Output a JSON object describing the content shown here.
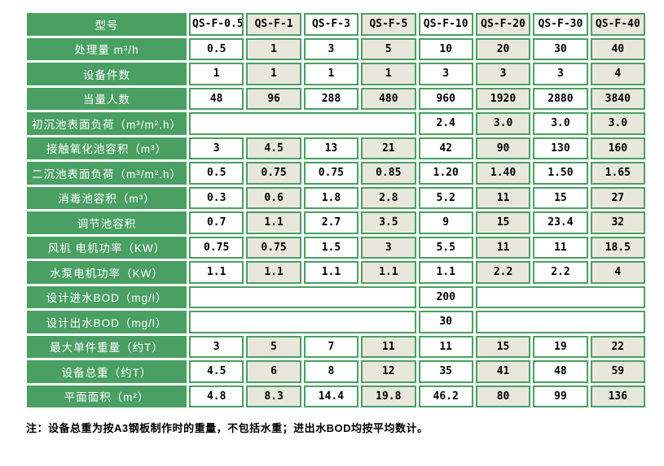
{
  "colors": {
    "green": "#4a9f63",
    "beige": "#e9e7db",
    "cell_white": "#ffffff",
    "text_dark": "#000000",
    "label_text": "#ffffff"
  },
  "table": {
    "model_row": {
      "label": "型号",
      "models": [
        "QS-F-0.5",
        "QS-F-1",
        "QS-F-3",
        "QS-F-5",
        "QS-F-10",
        "QS-F-20",
        "QS-F-30",
        "QS-F-40"
      ]
    },
    "rows": [
      {
        "label": "处理量 m³/h",
        "values": [
          "0.5",
          "1",
          "3",
          "5",
          "10",
          "20",
          "30",
          "40"
        ]
      },
      {
        "label": "设备件数",
        "values": [
          "1",
          "1",
          "1",
          "1",
          "3",
          "3",
          "3",
          "4"
        ]
      },
      {
        "label": "当量人数",
        "values": [
          "48",
          "96",
          "288",
          "480",
          "960",
          "1920",
          "2880",
          "3840"
        ]
      },
      {
        "label": "初沉池表面负荷（m³/m².h）",
        "cells": [
          {
            "text": "",
            "span": 4
          },
          {
            "text": "2.4"
          },
          {
            "text": "3.0"
          },
          {
            "text": "3.0"
          },
          {
            "text": "3.0"
          }
        ]
      },
      {
        "label": "接触氧化池容积（m³）",
        "values": [
          "3",
          "4.5",
          "13",
          "21",
          "42",
          "90",
          "130",
          "160"
        ]
      },
      {
        "label": "二沉池表面负荷（m³/m².h）",
        "values": [
          "0.5",
          "0.75",
          "0.75",
          "0.85",
          "1.20",
          "1.40",
          "1.50",
          "1.65"
        ]
      },
      {
        "label": "消毒池容积（m³）",
        "values": [
          "0.3",
          "0.6",
          "1.8",
          "2.8",
          "5.2",
          "11",
          "15",
          "27"
        ]
      },
      {
        "label": "调节池容积",
        "values": [
          "0.7",
          "1.1",
          "2.7",
          "3.5",
          "9",
          "15",
          "23.4",
          "32"
        ]
      },
      {
        "label": "风机 电机功率（KW）",
        "values": [
          "0.75",
          "0.75",
          "1.5",
          "3",
          "5.5",
          "11",
          "11",
          "18.5"
        ]
      },
      {
        "label": "水泵电机功率（KW）",
        "values": [
          "1.1",
          "1.1",
          "1.1",
          "1.1",
          "1.1",
          "2.2",
          "2.2",
          "4"
        ]
      },
      {
        "label": "设计进水BOD（mg/l）",
        "cells": [
          {
            "text": "",
            "span": 4
          },
          {
            "text": "200"
          },
          {
            "text": "",
            "span": 3
          }
        ]
      },
      {
        "label": "设计出水BOD（mg/l）",
        "cells": [
          {
            "text": "",
            "span": 4
          },
          {
            "text": "30"
          },
          {
            "text": "",
            "span": 3
          }
        ]
      },
      {
        "label": "最大单件重量（约T）",
        "values": [
          "3",
          "5",
          "7",
          "11",
          "11",
          "15",
          "19",
          "22"
        ]
      },
      {
        "label": "设备总重（约T）",
        "values": [
          "4.5",
          "6",
          "8",
          "12",
          "35",
          "41",
          "48",
          "59"
        ]
      },
      {
        "label": "平面面积（m²）",
        "values": [
          "4.8",
          "8.3",
          "14.4",
          "19.8",
          "46.2",
          "80",
          "99",
          "136"
        ]
      }
    ]
  },
  "footnote": "注：设备总重为按A3钢板制作时的重量，不包括水重；进出水BOD均按平均数计。"
}
